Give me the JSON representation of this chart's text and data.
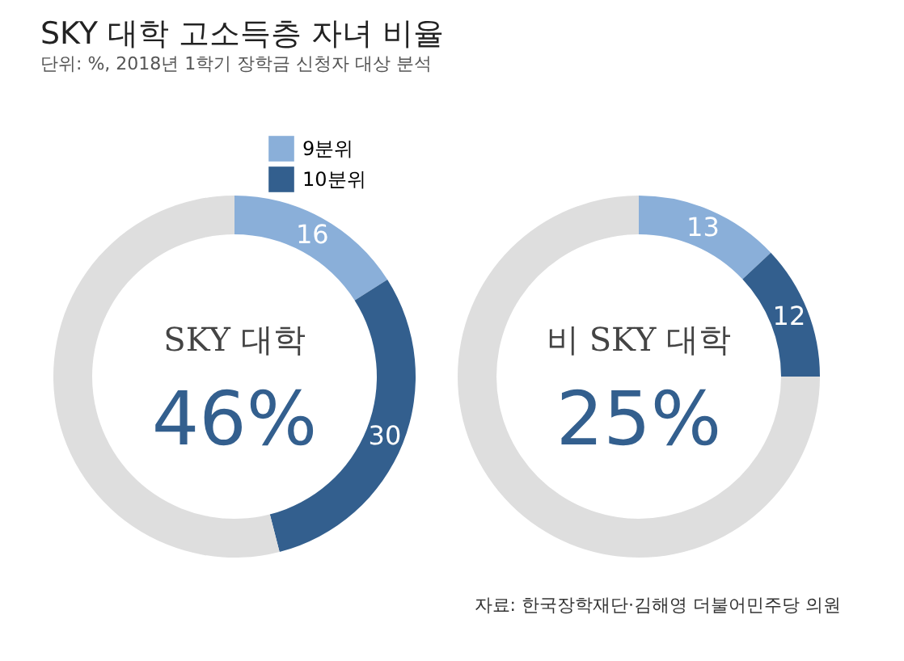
{
  "chart_data": [
    {
      "type": "donut",
      "title": "SKY 대학 고소득층 자녀 비율",
      "subtitle": "단위: %, 2018년 1학기 장학금 신청자 대상 분석",
      "categories": [
        "9분위",
        "10분위",
        null
      ],
      "values": [
        16,
        30,
        54
      ],
      "colors": [
        "#8aafd9",
        "#335f8e",
        "#dedede"
      ],
      "value_labels": [
        "16",
        "30",
        null
      ],
      "annotations": [
        "SKY 대학",
        "46%"
      ],
      "legend": "top"
    },
    {
      "type": "donut",
      "categories": [
        null,
        null,
        null
      ],
      "values": [
        13,
        12,
        75
      ],
      "colors": [
        "#8aafd9",
        "#335f8e",
        "#dedede"
      ],
      "value_labels": [
        "13",
        "12",
        null
      ],
      "annotations": [
        "비 SKY 대학",
        "25%",
        "자료: 한국장학재단·김해영 더불어민주당 의원"
      ],
      "legend": false
    }
  ]
}
